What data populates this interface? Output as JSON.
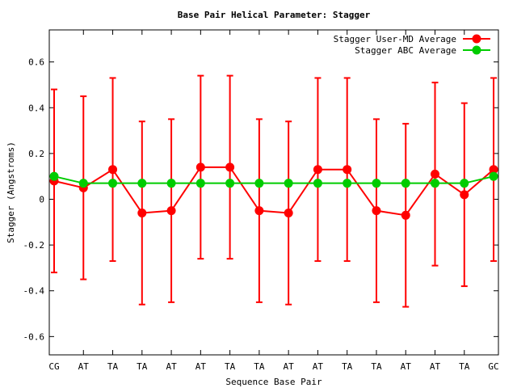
{
  "chart_data": {
    "type": "line",
    "title": "Base Pair Helical Parameter: Stagger",
    "xlabel": "Sequence Base Pair",
    "ylabel": "Stagger (Angstroms)",
    "categories": [
      "CG",
      "AT",
      "TA",
      "TA",
      "AT",
      "AT",
      "TA",
      "TA",
      "AT",
      "AT",
      "TA",
      "TA",
      "AT",
      "AT",
      "TA",
      "GC"
    ],
    "ylim": [
      -0.68,
      0.74
    ],
    "yticks": [
      -0.6,
      -0.4,
      -0.2,
      0,
      0.2,
      0.4,
      0.6
    ],
    "ytick_labels": [
      "-0.6",
      "-0.4",
      "-0.2",
      "0",
      "0.2",
      "0.4",
      "0.6"
    ],
    "legend_position": "top-right",
    "series": [
      {
        "name": "Stagger User-MD Average",
        "color": "#ff0000",
        "values": [
          0.08,
          0.05,
          0.13,
          -0.06,
          -0.05,
          0.14,
          0.14,
          -0.05,
          -0.06,
          0.13,
          0.13,
          -0.05,
          -0.07,
          0.11,
          0.02,
          0.13
        ],
        "error": [
          0.4,
          0.4,
          0.4,
          0.4,
          0.4,
          0.4,
          0.4,
          0.4,
          0.4,
          0.4,
          0.4,
          0.4,
          0.4,
          0.4,
          0.4,
          0.4
        ]
      },
      {
        "name": "Stagger ABC Average",
        "color": "#00cc00",
        "values": [
          0.1,
          0.07,
          0.07,
          0.07,
          0.07,
          0.07,
          0.07,
          0.07,
          0.07,
          0.07,
          0.07,
          0.07,
          0.07,
          0.07,
          0.07,
          0.1
        ]
      }
    ]
  }
}
